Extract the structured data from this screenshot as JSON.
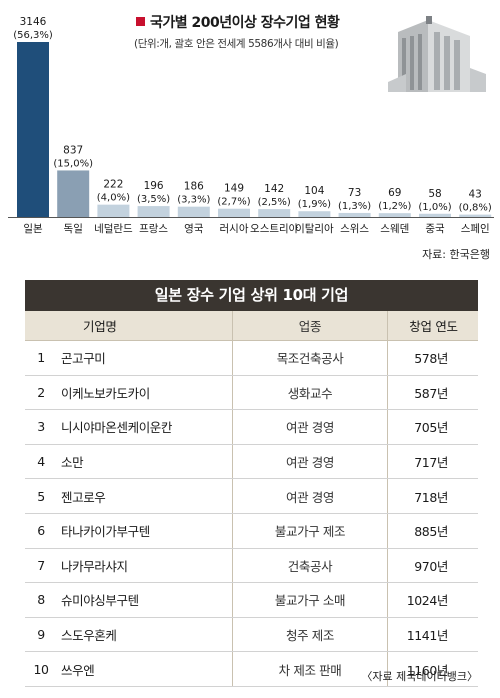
{
  "chart_data": {
    "type": "bar",
    "title": "국가별 200년이상 장수기업 현황",
    "subtitle": "(단위:개, 괄호 안은 전세계 5586개사 대비 비율)",
    "categories": [
      "일본",
      "독일",
      "네덜란드",
      "프랑스",
      "영국",
      "러시아",
      "오스트리아",
      "이탈리아",
      "스위스",
      "스웨덴",
      "중국",
      "스페인"
    ],
    "values": [
      3146,
      837,
      222,
      196,
      186,
      149,
      142,
      104,
      73,
      69,
      58,
      43
    ],
    "value_labels": [
      "3146",
      "837",
      "222",
      "196",
      "186",
      "149",
      "142",
      "104",
      "73",
      "69",
      "58",
      "43"
    ],
    "pct_labels": [
      "(56,3%)",
      "(15,0%)",
      "(4,0%)",
      "(3,5%)",
      "(3,3%)",
      "(2,7%)",
      "(2,5%)",
      "(1,9%)",
      "(1,3%)",
      "(1,2%)",
      "(1,0%)",
      "(0,8%)"
    ],
    "ylim": [
      0,
      3146
    ],
    "grid": false,
    "colors": {
      "highlight": "#1f4e7a",
      "second": "#8a9fb3",
      "rest": "#c3d2de",
      "title_bullet": "#c8102e"
    },
    "source": "자료: 한국은행"
  },
  "table": {
    "title": "일본 장수 기업 상위 10대 기업",
    "headers": {
      "name": "기업명",
      "industry": "업종",
      "year": "창업 연도"
    },
    "rows": [
      {
        "rank": "1",
        "name": "곤고구미",
        "industry": "목조건축공사",
        "year": "578년"
      },
      {
        "rank": "2",
        "name": "이케노보카도카이",
        "industry": "생화교수",
        "year": "587년"
      },
      {
        "rank": "3",
        "name": "니시야마온센케이운칸",
        "industry": "여관 경영",
        "year": "705년"
      },
      {
        "rank": "4",
        "name": "소만",
        "industry": "여관 경영",
        "year": "717년"
      },
      {
        "rank": "5",
        "name": "젠고로우",
        "industry": "여관 경영",
        "year": "718년"
      },
      {
        "rank": "6",
        "name": "타나카이가부구텐",
        "industry": "불교가구 제조",
        "year": "885년"
      },
      {
        "rank": "7",
        "name": "나카무라샤지",
        "industry": "건축공사",
        "year": "970년"
      },
      {
        "rank": "8",
        "name": "슈미야싱부구텐",
        "industry": "불교가구 소매",
        "year": "1024년"
      },
      {
        "rank": "9",
        "name": "스도우혼케",
        "industry": "청주 제조",
        "year": "1141년"
      },
      {
        "rank": "10",
        "name": "쓰우엔",
        "industry": "차 제조 판매",
        "year": "1160년"
      }
    ],
    "source": "〈자료 제국데이터뱅크〉"
  }
}
